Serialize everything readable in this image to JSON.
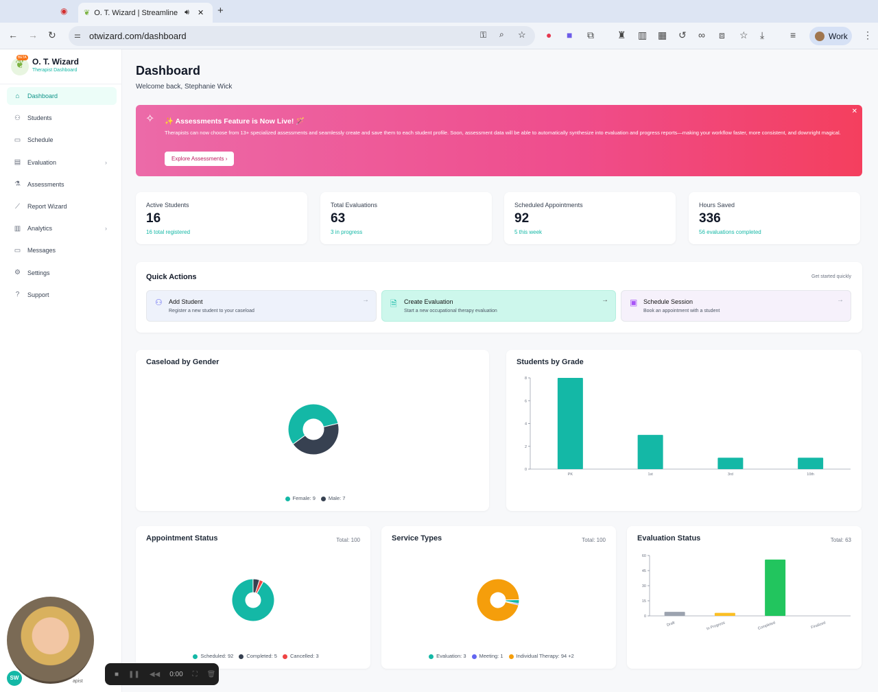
{
  "browser": {
    "tab_title": "O. T. Wizard | Streamline",
    "url": "otwizard.com/dashboard",
    "profile": "Work"
  },
  "sidebar": {
    "app_name": "O. T. Wizard",
    "app_subtitle": "Therapist Dashboard",
    "badge": "BETA",
    "items": [
      {
        "label": "Dashboard",
        "icon": "home-icon",
        "glyph": "⌂",
        "active": true
      },
      {
        "label": "Students",
        "icon": "users-icon",
        "glyph": "⚇"
      },
      {
        "label": "Schedule",
        "icon": "calendar-icon",
        "glyph": "▭"
      },
      {
        "label": "Evaluation",
        "icon": "clipboard-icon",
        "glyph": "▤",
        "chevron": true
      },
      {
        "label": "Assessments",
        "icon": "flask-icon",
        "glyph": "⚗"
      },
      {
        "label": "Report Wizard",
        "icon": "wand-icon",
        "glyph": "⟋"
      },
      {
        "label": "Analytics",
        "icon": "chart-icon",
        "glyph": "▥",
        "chevron": true
      },
      {
        "label": "Messages",
        "icon": "message-icon",
        "glyph": "▭"
      },
      {
        "label": "Settings",
        "icon": "gear-icon",
        "glyph": "⚙"
      },
      {
        "label": "Support",
        "icon": "help-icon",
        "glyph": "?"
      }
    ],
    "user_initials": "SW",
    "user_role_fragment": "apist"
  },
  "header": {
    "title": "Dashboard",
    "welcome": "Welcome back, Stephanie Wick"
  },
  "banner": {
    "title": "✨ Assessments Feature is Now Live! 🪄",
    "body": "Therapists can now choose from 13+ specialized assessments and seamlessly create and save them to each student profile. Soon, assessment data will be able to automatically synthesize into evaluation and progress reports—making your workflow faster, more consistent, and downright magical.",
    "button": "Explore Assessments",
    "colors": [
      "#ec6aa8",
      "#f43f5e"
    ]
  },
  "stats": [
    {
      "label": "Active Students",
      "value": "16",
      "sub": "16 total registered"
    },
    {
      "label": "Total Evaluations",
      "value": "63",
      "sub": "3 in progress"
    },
    {
      "label": "Scheduled Appointments",
      "value": "92",
      "sub": "5 this week"
    },
    {
      "label": "Hours Saved",
      "value": "336",
      "sub": "56 evaluations completed"
    }
  ],
  "quick_actions": {
    "title": "Quick Actions",
    "hint": "Get started quickly",
    "items": [
      {
        "title": "Add Student",
        "desc": "Register a new student to your caseload"
      },
      {
        "title": "Create Evaluation",
        "desc": "Start a new occupational therapy evaluation"
      },
      {
        "title": "Schedule Session",
        "desc": "Book an appointment with a student"
      }
    ]
  },
  "recorder": {
    "time": "0:00"
  },
  "chart_data": [
    {
      "id": "gender",
      "type": "pie",
      "title": "Caseload by Gender",
      "slices": [
        {
          "name": "Female",
          "value": 9,
          "color": "#14b8a6",
          "legend": "Female: 9"
        },
        {
          "name": "Male",
          "value": 7,
          "color": "#374151",
          "legend": "Male: 7"
        }
      ]
    },
    {
      "id": "grade",
      "type": "bar",
      "title": "Students by Grade",
      "categories": [
        "PK",
        "1st",
        "3rd",
        "10th"
      ],
      "values": [
        8,
        3,
        1,
        1
      ],
      "ylim": [
        0,
        8
      ],
      "yticks": [
        "0",
        "2",
        "4",
        "6",
        "8"
      ],
      "color": "#14b8a6"
    },
    {
      "id": "appt",
      "type": "pie",
      "title": "Appointment Status",
      "total": "Total: 100",
      "slices": [
        {
          "name": "Scheduled",
          "value": 92,
          "color": "#14b8a6",
          "legend": "Scheduled: 92"
        },
        {
          "name": "Completed",
          "value": 5,
          "color": "#374151",
          "legend": "Completed: 5"
        },
        {
          "name": "Cancelled",
          "value": 3,
          "color": "#ef4444",
          "legend": "Cancelled: 3"
        }
      ]
    },
    {
      "id": "service",
      "type": "pie",
      "title": "Service Types",
      "total": "Total: 100",
      "more": "+2",
      "slices": [
        {
          "name": "Evaluation",
          "value": 3,
          "color": "#14b8a6",
          "legend": "Evaluation: 3"
        },
        {
          "name": "Meeting",
          "value": 1,
          "color": "#6366f1",
          "legend": "Meeting: 1"
        },
        {
          "name": "Individual Therapy",
          "value": 94,
          "color": "#f59e0b",
          "legend": "Individual Therapy: 94"
        }
      ]
    },
    {
      "id": "evalstatus",
      "type": "bar",
      "title": "Evaluation Status",
      "total": "Total: 63",
      "categories": [
        "Draft",
        "In Progress",
        "Completed",
        "Finalized"
      ],
      "values": [
        4,
        3,
        56,
        0
      ],
      "colors": [
        "#9ca3af",
        "#fbbf24",
        "#22c55e",
        "#22c55e"
      ],
      "ylim": [
        0,
        60
      ],
      "yticks": [
        "0",
        "15",
        "30",
        "45",
        "60"
      ]
    }
  ]
}
